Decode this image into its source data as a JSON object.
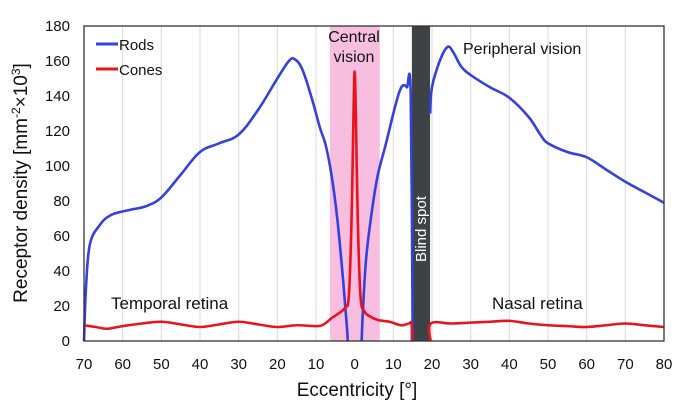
{
  "chart_data": {
    "type": "line",
    "title": "",
    "xlabel": "Eccentricity [°]",
    "ylabel": "Receptor density [mm⁻²×10³]",
    "ylabel_parts": {
      "main": "Receptor density [mm",
      "sup1": "-2",
      "mid": "×10",
      "sup2": "3",
      "end": "]"
    },
    "xlim": [
      -70,
      80
    ],
    "ylim": [
      0,
      180
    ],
    "xticks": [
      -70,
      -60,
      -50,
      -40,
      -30,
      -20,
      -10,
      0,
      10,
      20,
      30,
      40,
      50,
      60,
      70,
      80
    ],
    "xtick_labels": [
      "70",
      "60",
      "50",
      "40",
      "30",
      "20",
      "10",
      "0",
      "10",
      "20",
      "30",
      "40",
      "50",
      "60",
      "70",
      "80"
    ],
    "yticks": [
      0,
      20,
      40,
      60,
      80,
      100,
      120,
      140,
      160,
      180
    ],
    "ytick_labels": [
      "0",
      "20",
      "40",
      "60",
      "80",
      "100",
      "120",
      "140",
      "160",
      "180"
    ],
    "grid": "vertical",
    "legend_position": "top-left",
    "series": [
      {
        "name": "Rods",
        "color": "#3440e0",
        "segments": [
          [
            [
              -70,
              0
            ],
            [
              -69.5,
              30
            ],
            [
              -68.5,
              55
            ],
            [
              -66,
              66
            ],
            [
              -63,
              72
            ],
            [
              -58,
              75
            ],
            [
              -54,
              77
            ],
            [
              -50,
              82
            ],
            [
              -45,
              95
            ],
            [
              -40,
              108
            ],
            [
              -35,
              113
            ],
            [
              -30,
              118
            ],
            [
              -25,
              132
            ],
            [
              -20,
              150
            ],
            [
              -17,
              160
            ],
            [
              -15.5,
              161
            ],
            [
              -13.5,
              155
            ],
            [
              -11,
              138
            ],
            [
              -9,
              122
            ],
            [
              -7.5,
              112
            ],
            [
              -6,
              95
            ],
            [
              -4.5,
              70
            ],
            [
              -3,
              35
            ],
            [
              -2,
              8
            ],
            [
              -1.8,
              0
            ]
          ],
          [
            [
              1.8,
              0
            ],
            [
              2.2,
              20
            ],
            [
              3,
              48
            ],
            [
              4.5,
              75
            ],
            [
              6,
              95
            ],
            [
              8,
              112
            ],
            [
              10,
              130
            ],
            [
              11.5,
              142
            ],
            [
              12.5,
              146
            ],
            [
              13.5,
              145
            ],
            [
              14.5,
              140
            ],
            [
              15,
              0
            ]
          ],
          [
            [
              19.5,
              130
            ],
            [
              20,
              145
            ],
            [
              22,
              160
            ],
            [
              24,
              168
            ],
            [
              25.5,
              165
            ],
            [
              27.5,
              157
            ],
            [
              30,
              152
            ],
            [
              35,
              145
            ],
            [
              40,
              139
            ],
            [
              45,
              128
            ],
            [
              48,
              118
            ],
            [
              50,
              113
            ],
            [
              55,
              108
            ],
            [
              60,
              105
            ],
            [
              65,
              98
            ],
            [
              70,
              91
            ],
            [
              75,
              85
            ],
            [
              80,
              79
            ]
          ]
        ]
      },
      {
        "name": "Cones",
        "color": "#e8141c",
        "segments": [
          [
            [
              -70,
              9
            ],
            [
              -67,
              8
            ],
            [
              -64,
              7
            ],
            [
              -60,
              8.5
            ],
            [
              -55,
              10
            ],
            [
              -50,
              11
            ],
            [
              -45,
              9.5
            ],
            [
              -40,
              8
            ],
            [
              -35,
              9.5
            ],
            [
              -30,
              11
            ],
            [
              -25,
              9.5
            ],
            [
              -20,
              8
            ],
            [
              -15,
              9
            ],
            [
              -10,
              8.5
            ],
            [
              -8,
              9.5
            ],
            [
              -6,
              13
            ],
            [
              -4,
              16
            ],
            [
              -2.5,
              19
            ],
            [
              -1.5,
              26
            ],
            [
              -0.8,
              70
            ],
            [
              -0.3,
              130
            ],
            [
              0,
              154
            ],
            [
              0.3,
              130
            ],
            [
              0.8,
              70
            ],
            [
              1.5,
              26
            ],
            [
              2.5,
              17
            ],
            [
              4,
              14
            ],
            [
              6,
              12
            ],
            [
              9,
              11
            ],
            [
              12,
              9
            ],
            [
              14,
              10
            ],
            [
              14.7,
              10
            ],
            [
              14.8,
              0
            ]
          ],
          [
            [
              19.6,
              0
            ],
            [
              19.7,
              10
            ],
            [
              25,
              10
            ],
            [
              30,
              10.5
            ],
            [
              35,
              11
            ],
            [
              40,
              11.5
            ],
            [
              45,
              10
            ],
            [
              50,
              9
            ],
            [
              55,
              8.5
            ],
            [
              60,
              8
            ],
            [
              65,
              9
            ],
            [
              70,
              10
            ],
            [
              75,
              9
            ],
            [
              80,
              8
            ]
          ]
        ]
      }
    ],
    "regions": [
      {
        "name": "Central vision",
        "label_lines": [
          "Central",
          "vision"
        ],
        "range": [
          -6.4,
          6.5
        ],
        "color": "#f8bedf"
      },
      {
        "name": "Blind spot",
        "label": "Blind spot",
        "range": [
          14.8,
          19.5
        ],
        "color": "#3d4245"
      }
    ],
    "annotations": {
      "peripheral": "Peripheral vision",
      "temporal": "Temporal retina",
      "nasal": "Nasal retina"
    }
  }
}
